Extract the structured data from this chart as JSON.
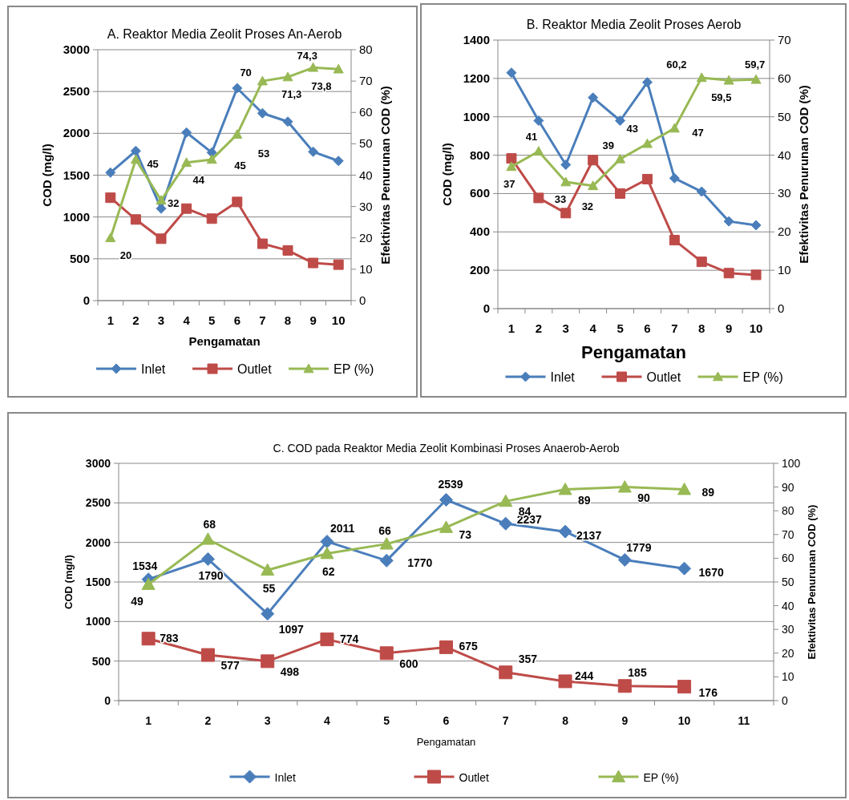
{
  "chart_data": [
    {
      "type": "line",
      "title": "A. Reaktor Media Zeolit Proses An-Aerob",
      "xlabel": "Pengamatan",
      "ylabel": "COD (mg/l)",
      "y2label": "Efektivitas Penurunan COD (%)",
      "categories": [
        "1",
        "2",
        "3",
        "4",
        "5",
        "6",
        "7",
        "8",
        "9",
        "10"
      ],
      "ylim": [
        0,
        3000
      ],
      "yticks": [
        0,
        500,
        1000,
        1500,
        2000,
        2500,
        3000
      ],
      "y2lim": [
        0,
        80
      ],
      "y2ticks": [
        0,
        10,
        20,
        30,
        40,
        50,
        60,
        70,
        80
      ],
      "grid": "y",
      "legend": "bottom",
      "series": [
        {
          "name": "Inlet",
          "color": "#4a7ebb",
          "marker": "diamond",
          "values": [
            1530,
            1790,
            1100,
            2010,
            1770,
            2540,
            2240,
            2140,
            1780,
            1670
          ]
        },
        {
          "name": "Outlet",
          "color": "#be4b48",
          "marker": "square",
          "values": [
            1230,
            970,
            740,
            1100,
            980,
            1180,
            680,
            600,
            450,
            430
          ]
        },
        {
          "name": "EP (%)",
          "color": "#98b954",
          "marker": "triangle",
          "axis": "y2",
          "values": [
            20,
            45,
            32,
            44,
            45,
            53,
            70,
            71.3,
            74.3,
            73.8
          ],
          "value_labels": [
            "20",
            "45",
            "32",
            "44",
            "45",
            "53",
            "70",
            "71,3",
            "74,3",
            "73,8"
          ]
        }
      ]
    },
    {
      "type": "line",
      "title": "B. Reaktor Media Zeolit Proses Aerob",
      "xlabel": "Pengamatan",
      "ylabel": "COD (mg/l)",
      "y2label": "Efektivitas Penurunan COD (%)",
      "categories": [
        "1",
        "2",
        "3",
        "4",
        "5",
        "6",
        "7",
        "8",
        "9",
        "10"
      ],
      "ylim": [
        0,
        1400
      ],
      "yticks": [
        0,
        200,
        400,
        600,
        800,
        1000,
        1200,
        1400
      ],
      "y2lim": [
        0,
        70
      ],
      "y2ticks": [
        0,
        10,
        20,
        30,
        40,
        50,
        60,
        70
      ],
      "grid": "y",
      "legend": "bottom",
      "series": [
        {
          "name": "Inlet",
          "color": "#4a7ebb",
          "marker": "diamond",
          "values": [
            1230,
            980,
            750,
            1100,
            980,
            1180,
            680,
            610,
            455,
            435
          ]
        },
        {
          "name": "Outlet",
          "color": "#be4b48",
          "marker": "square",
          "values": [
            783,
            577,
            498,
            774,
            600,
            675,
            357,
            244,
            185,
            176
          ]
        },
        {
          "name": "EP (%)",
          "color": "#98b954",
          "marker": "triangle",
          "axis": "y2",
          "values": [
            37,
            41,
            33,
            32,
            39,
            43,
            47,
            60.2,
            59.5,
            59.7
          ],
          "value_labels": [
            "37",
            "41",
            "33",
            "32",
            "39",
            "43",
            "47",
            "60,2",
            "59,5",
            "59,7"
          ]
        }
      ]
    },
    {
      "type": "line",
      "title": "C. COD pada Reaktor Media Zeolit Kombinasi Proses Anaerob-Aerob",
      "xlabel": "Pengamatan",
      "ylabel": "COD (mg/l)",
      "y2label": "Efektivitas Penurunan COD (%)",
      "categories": [
        "1",
        "2",
        "3",
        "4",
        "5",
        "6",
        "7",
        "8",
        "9",
        "10",
        "11"
      ],
      "ylim": [
        0,
        3000
      ],
      "yticks": [
        0,
        500,
        1000,
        1500,
        2000,
        2500,
        3000
      ],
      "y2lim": [
        0,
        100
      ],
      "y2ticks": [
        0,
        10,
        20,
        30,
        40,
        50,
        60,
        70,
        80,
        90,
        100
      ],
      "grid": "y",
      "legend": "bottom",
      "data_labels": true,
      "series": [
        {
          "name": "Inlet",
          "color": "#4a7ebb",
          "marker": "diamond",
          "values": [
            1534,
            1790,
            1097,
            2011,
            1770,
            2539,
            2237,
            2137,
            1779,
            1670,
            null
          ]
        },
        {
          "name": "Outlet",
          "color": "#be4b48",
          "marker": "square",
          "values": [
            783,
            577,
            498,
            774,
            600,
            675,
            357,
            244,
            185,
            176,
            null
          ]
        },
        {
          "name": "EP (%)",
          "color": "#98b954",
          "marker": "triangle",
          "axis": "y2",
          "values": [
            49,
            68,
            55,
            62,
            66,
            73,
            84,
            89,
            90,
            89,
            null
          ]
        }
      ]
    }
  ]
}
